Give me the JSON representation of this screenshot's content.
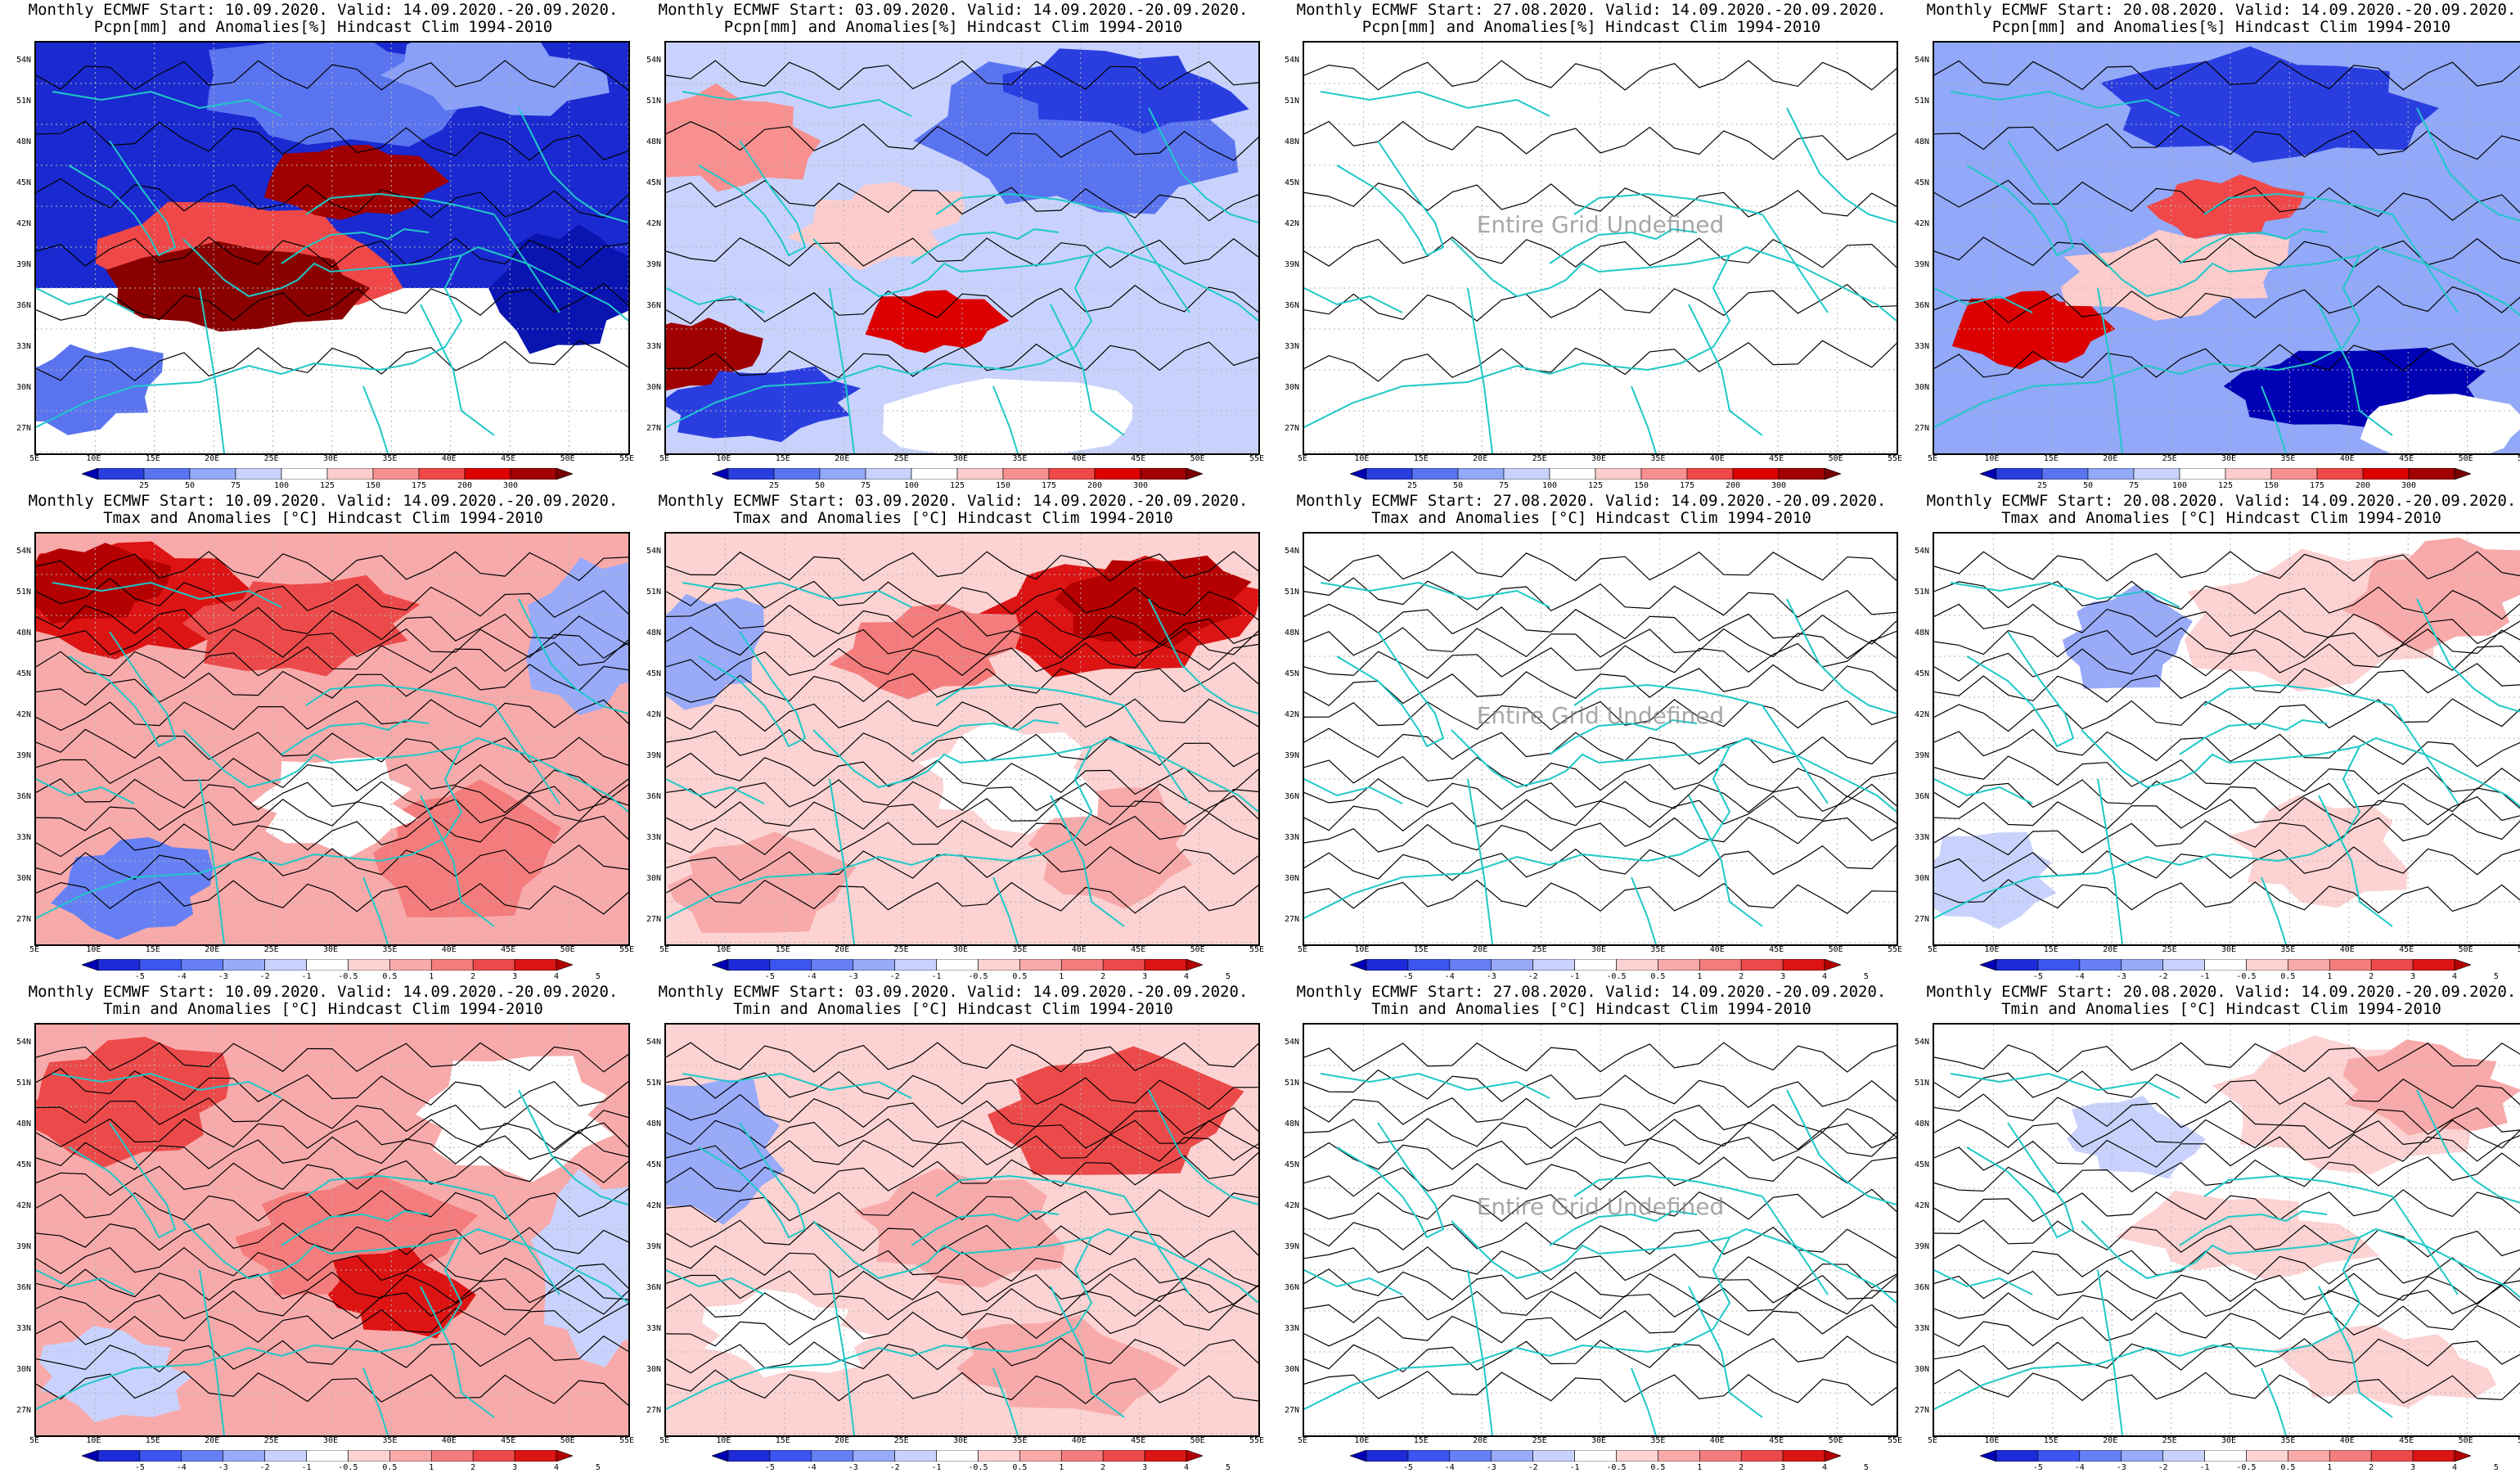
{
  "panels": [
    {
      "line1": "Monthly ECMWF Start: 10.09.2020. Valid: 14.09.2020.-20.09.2020.",
      "line2": "Pcpn[mm] and Anomalies[%] Hindcast Clim 1994-2010",
      "variable": "precip",
      "style": "precip_a",
      "undefined_text": ""
    },
    {
      "line1": "Monthly ECMWF Start: 03.09.2020. Valid: 14.09.2020.-20.09.2020.",
      "line2": "Pcpn[mm] and Anomalies[%] Hindcast Clim 1994-2010",
      "variable": "precip",
      "style": "precip_b",
      "undefined_text": ""
    },
    {
      "line1": "Monthly ECMWF Start: 27.08.2020. Valid: 14.09.2020.-20.09.2020.",
      "line2": "Pcpn[mm] and Anomalies[%] Hindcast Clim 1994-2010",
      "variable": "precip",
      "style": "blank",
      "undefined_text": "Entire Grid Undefined"
    },
    {
      "line1": "Monthly ECMWF Start: 20.08.2020. Valid: 14.09.2020.-20.09.2020.",
      "line2": "Pcpn[mm] and Anomalies[%] Hindcast Clim 1994-2010",
      "variable": "precip",
      "style": "precip_d",
      "undefined_text": ""
    },
    {
      "line1": "Monthly ECMWF Start: 10.09.2020. Valid: 14.09.2020.-20.09.2020.",
      "line2": "Tmax and Anomalies [°C] Hindcast Clim 1994-2010",
      "variable": "temp",
      "style": "tmax_a",
      "undefined_text": ""
    },
    {
      "line1": "Monthly ECMWF Start: 03.09.2020. Valid: 14.09.2020.-20.09.2020.",
      "line2": "Tmax and Anomalies [°C] Hindcast Clim 1994-2010",
      "variable": "temp",
      "style": "tmax_b",
      "undefined_text": ""
    },
    {
      "line1": "Monthly ECMWF Start: 27.08.2020. Valid: 14.09.2020.-20.09.2020.",
      "line2": "Tmax and Anomalies [°C] Hindcast Clim 1994-2010",
      "variable": "temp",
      "style": "blank",
      "undefined_text": "Entire Grid Undefined"
    },
    {
      "line1": "Monthly ECMWF Start: 20.08.2020. Valid: 14.09.2020.-20.09.2020.",
      "line2": "Tmax and Anomalies [°C] Hindcast Clim 1994-2010",
      "variable": "temp",
      "style": "tmax_d",
      "undefined_text": ""
    },
    {
      "line1": "Monthly ECMWF Start: 10.09.2020. Valid: 14.09.2020.-20.09.2020.",
      "line2": "Tmin and Anomalies [°C] Hindcast Clim 1994-2010",
      "variable": "temp",
      "style": "tmin_a",
      "undefined_text": ""
    },
    {
      "line1": "Monthly ECMWF Start: 03.09.2020. Valid: 14.09.2020.-20.09.2020.",
      "line2": "Tmin and Anomalies [°C] Hindcast Clim 1994-2010",
      "variable": "temp",
      "style": "tmin_b",
      "undefined_text": ""
    },
    {
      "line1": "Monthly ECMWF Start: 27.08.2020. Valid: 14.09.2020.-20.09.2020.",
      "line2": "Tmin and Anomalies [°C] Hindcast Clim 1994-2010",
      "variable": "temp",
      "style": "blank",
      "undefined_text": "Entire Grid Undefined"
    },
    {
      "line1": "Monthly ECMWF Start: 20.08.2020. Valid: 14.09.2020.-20.09.2020.",
      "line2": "Tmin and Anomalies [°C] Hindcast Clim 1994-2010",
      "variable": "temp",
      "style": "tmin_d",
      "undefined_text": ""
    }
  ],
  "lat_labels": [
    "54N",
    "51N",
    "48N",
    "45N",
    "42N",
    "39N",
    "36N",
    "33N",
    "30N",
    "27N"
  ],
  "lon_labels": [
    "5E",
    "10E",
    "15E",
    "20E",
    "25E",
    "30E",
    "35E",
    "40E",
    "45E",
    "50E",
    "55E"
  ],
  "colorbars": {
    "precip": {
      "labels": [
        "25",
        "50",
        "75",
        "100",
        "125",
        "150",
        "175",
        "200",
        "300"
      ],
      "colors": [
        "#0000b4",
        "#2a3ee0",
        "#5a74f0",
        "#92a8f8",
        "#c8d2fc",
        "#ffffff",
        "#fccccc",
        "#f89090",
        "#f04848",
        "#dc0000",
        "#a00000",
        "#780000"
      ]
    },
    "temp": {
      "labels": [
        "-5",
        "-4",
        "-3",
        "-2",
        "-1",
        "-0.5",
        "0.5",
        "1",
        "2",
        "3",
        "4",
        "5"
      ],
      "colors": [
        "#0000b4",
        "#1c2ad8",
        "#3c55f0",
        "#6680f4",
        "#98aaf8",
        "#c8d2fc",
        "#ffffff",
        "#fcd2d2",
        "#f8aaaa",
        "#f47c7c",
        "#ec4a4a",
        "#dc1414",
        "#b40000"
      ]
    }
  },
  "palette": {
    "coast": "#1fc8c8",
    "contour": "#000000",
    "grid": "#b4b4b4"
  }
}
